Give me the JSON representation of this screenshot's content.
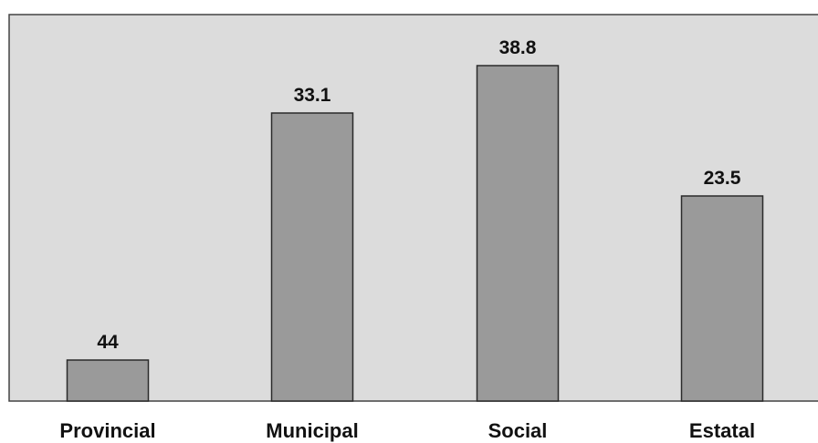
{
  "chart_data": {
    "type": "bar",
    "categories": [
      "Provincial",
      "Municipal",
      "Social",
      "Estatal"
    ],
    "values": [
      44,
      33.1,
      38.8,
      23.5
    ],
    "data_labels": [
      "44",
      "33.1",
      "38.8",
      "23.5"
    ],
    "title": "",
    "xlabel": "",
    "ylabel": "",
    "grid": false,
    "legend": "none",
    "colors": {
      "plot_background": "#dcdcdc",
      "bar_fill": "#9a9a9a",
      "bar_stroke": "#2a2a2a",
      "frame": "#444444",
      "text": "#111111"
    }
  }
}
